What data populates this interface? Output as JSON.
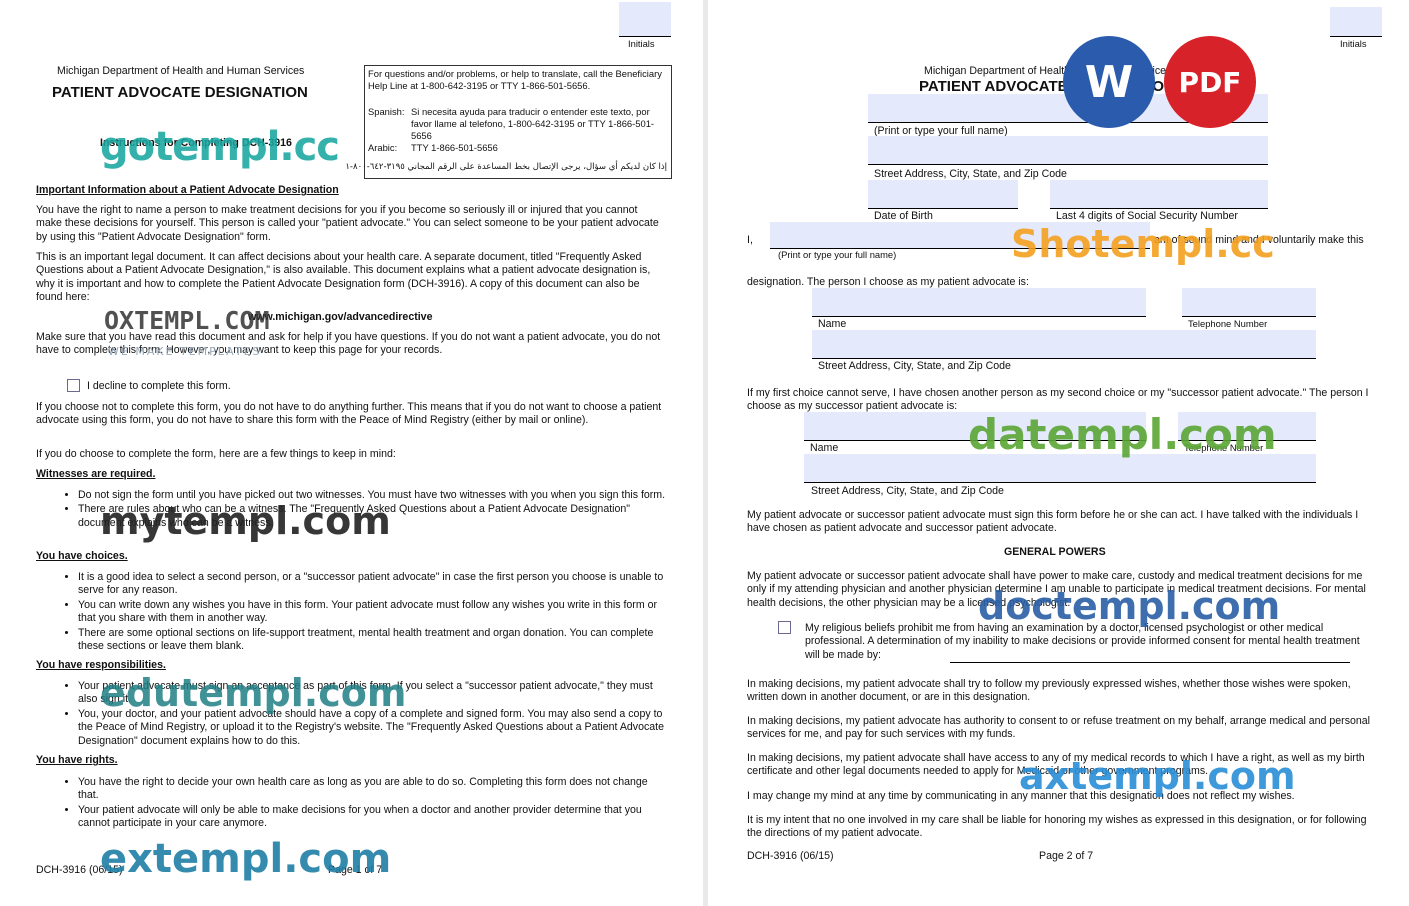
{
  "page1": {
    "initials_label": "Initials",
    "agency": "Michigan Department of Health and Human Services",
    "title": "PATIENT ADVOCATE DESIGNATION",
    "subtitle": "Instructions for Completing DCH-3916",
    "help_box": {
      "english": "For questions and/or problems, or help to translate, call the Beneficiary Help Line at 1-800-642-3195 or TTY 1-866-501-5656.",
      "spanish_label": "Spanish:",
      "spanish": "Si necesita ayuda para traducir o entender este texto, por favor llame al telefono, 1-800-642-3195 or TTY 1-866-501-5656",
      "arabic_label": "Arabic:",
      "arabic_tty": "TTY 1-866-501-5656",
      "arabic_line": "إذا كان لديكم أي سؤال، يرجى الإتصال بخط المساعدة على الرقم المجاني ٣١٩٥-٦٤٢-٨٠٠-١"
    },
    "important_heading": "Important Information about a Patient Advocate Designation",
    "para1": "You have the right to name a person to make treatment decisions for you if you become so seriously ill or injured that you cannot make these decisions for yourself. This person is called your \"patient advocate.\" You can select someone to be your patient advocate by using this \"Patient Advocate Designation\" form.",
    "para2": "This is an important legal document. It can affect decisions about your health care. A separate document, titled \"Frequently Asked Questions about a Patient Advocate Designation,\" is also available. This document explains what a patient advocate designation is, why it is important and how to complete the Patient Advocate Designation form (DCH-3916). A copy of this document can also be found here:",
    "url": "www.michigan.gov/advancedirective",
    "para3": "Make sure that you have read this document and ask for help if you have questions. If you do not want a patient advocate, you do not have to complete this form. However, you may want to keep this page for your records.",
    "decline_label": "I decline to complete this form.",
    "para4": "If you choose not to complete this form, you do not have to do anything further. This means that if you do not want to choose a patient advocate using this form, you do not have to share this form with the Peace of Mind Registry (either by mail or online).",
    "para5": "If you do choose to complete the form, here are a few things to keep in mind:",
    "witnesses_heading": "Witnesses are required.",
    "witnesses_items": [
      "Do not sign the form until you have picked out two witnesses. You must have two witnesses with you when you sign this form.",
      "There are rules about who can be a witness. The \"Frequently Asked Questions about a Patient Advocate Designation\" document explains who can be a witness."
    ],
    "choices_heading": "You have choices.",
    "choices_items": [
      "It is a good idea to select a second person, or a \"successor patient advocate\" in case the first person you choose is unable to serve for any reason.",
      "You can write down any wishes you have in this form. Your patient advocate must follow any wishes you write in this form or that you share with them in another way.",
      "There are some optional sections on life-support treatment, mental health treatment and organ donation. You can complete these sections or leave them blank."
    ],
    "responsibilities_heading": "You have responsibilities.",
    "responsibilities_items": [
      "Your patient advocate must sign an acceptance as part of this form. If you select a \"successor patient advocate,\" they must also sign it.",
      "You, your doctor, and your patient advocate should have a copy of a complete and signed form. You may also send a copy to the Peace of Mind Registry, or upload it to the Registry's website. The \"Frequently Asked Questions about a Patient Advocate Designation\" document explains how to do this."
    ],
    "rights_heading": "You have rights.",
    "rights_items": [
      "You have the right to decide your own health care as long as you are able to do so. Completing this form does not change that.",
      "Your patient advocate will only be able to make decisions for you when a doctor and another provider determine that you cannot participate in your care anymore."
    ],
    "footer_form": "DCH-3916 (06/15)",
    "footer_page": "Page 1 of 7"
  },
  "page2": {
    "initials_label": "Initials",
    "agency": "Michigan Department of Health and Human Services",
    "title": "PATIENT ADVOCATE DESIGNATION",
    "full_name_label": "(Print or type your full name)",
    "address_label": "Street Address, City, State, and Zip Code",
    "dob_label": "Date of Birth",
    "ssn_label": "Last 4 digits of Social Security Number",
    "i_label": "I,",
    "i_name_label": "(Print or type your full name)",
    "sound_mind": "am of sound mind and I voluntarily make this",
    "designation_text": "designation. The person I choose as my patient advocate is:",
    "name_label": "Name",
    "phone_label": "Telephone Number",
    "advocate_address_label": "Street Address, City, State, and Zip Code",
    "successor_text": "If my first choice cannot serve, I have chosen another person as my second choice or my \"successor patient advocate.\" The person I choose as my successor patient advocate is:",
    "successor_name_label": "Name",
    "successor_phone_label": "Telephone Number",
    "successor_address_label": "Street Address, City, State, and Zip Code",
    "accept_text": "My patient advocate or successor patient advocate must sign this form before he or she can act. I have talked with the individuals I have chosen as patient advocate and successor patient advocate.",
    "general_powers": "GENERAL POWERS",
    "powers_text": "My patient advocate or successor patient advocate shall have power to make care, custody and medical treatment decisions for me only if my attending physician and another physician determine I am unable to participate in medical treatment decisions. For mental health decisions, the other physician may be a licensed psychologist.",
    "religious_text": "My religious beliefs prohibit me from having an examination by a doctor, licensed psychologist or other medical professional. A determination of my inability to make decisions or provide informed consent for mental health treatment will be made by:",
    "wishes_text": "In making decisions, my patient advocate shall try to follow my previously expressed wishes, whether those wishes were spoken, written down in another document, or are in this designation.",
    "authority_text": "In making decisions, my patient advocate has authority to consent to or refuse treatment on my behalf, arrange medical and personal services for me, and pay for such services with my funds.",
    "records_text": "In making decisions, my patient advocate shall have access to any of my medical records to which I have a right, as well as my birth certificate and other legal documents needed to apply for Medicaid or other government programs.",
    "change_text": "I may change my mind at any time by communicating in any manner that this designation does not reflect my wishes.",
    "liability_text": "It is my intent that no one involved in my care shall be liable for honoring my wishes as expressed in this designation, or for following the directions of my patient advocate.",
    "footer_form": "DCH-3916 (06/15)",
    "footer_page": "Page 2 of 7"
  },
  "badges": {
    "word": "W",
    "pdf": "PDF",
    "word_color": "#2b5bad",
    "pdf_color": "#d8222a"
  },
  "watermarks": {
    "gotempl": "gotempl.cc",
    "oxtempl": "OXTEMPL.COM",
    "oxtempl_sub": "WE MAKE TEMPLATES",
    "mytempl": "mytempl.com",
    "edutempl": "edutempl.com",
    "extempl": "extempl.com",
    "shotempl": "Shotempl.cc",
    "datempl": "datempl.com",
    "doctempl": "doctempl.com",
    "axtempl": "axtempl.com"
  }
}
